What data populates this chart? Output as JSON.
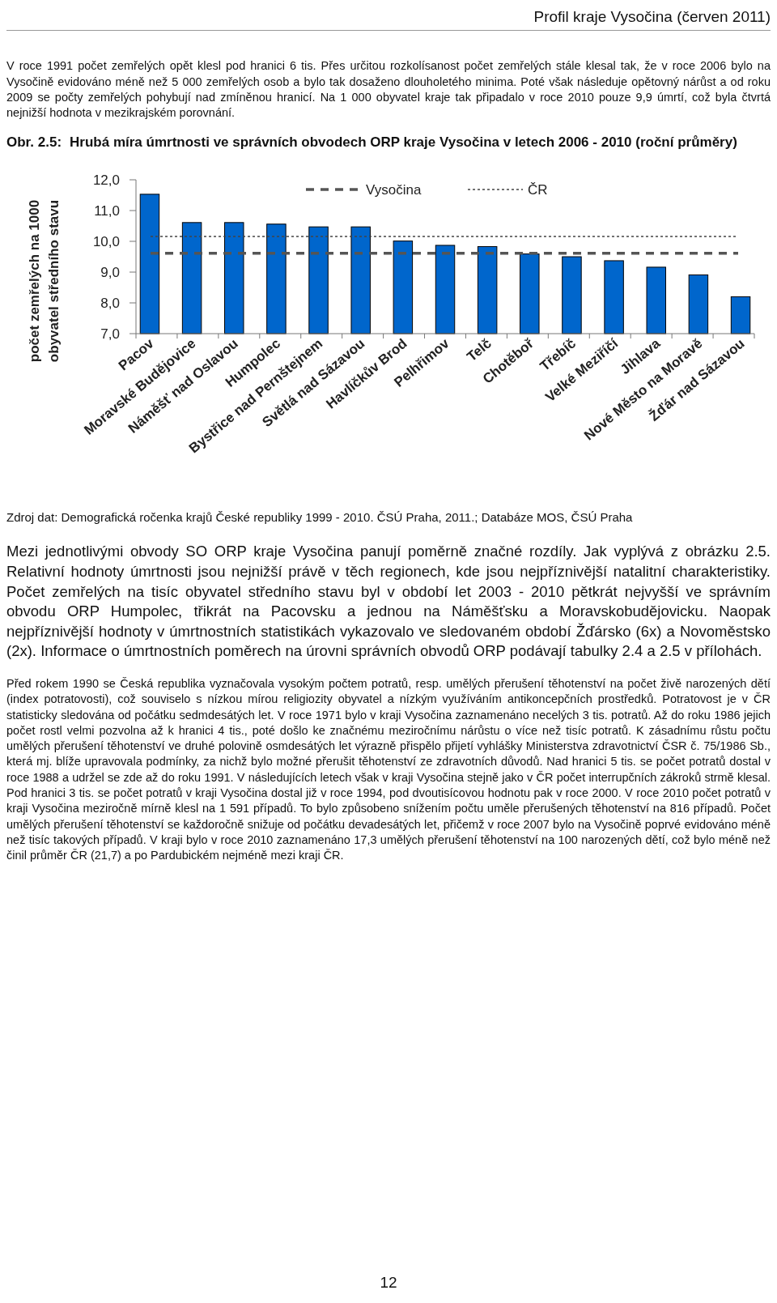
{
  "chart_data": {
    "type": "bar",
    "title": "Obr. 2.5: Hrubá míra úmrtnosti ve správních obvodech ORP kraje Vysočina v letech 2006 - 2010 (roční průměry)",
    "ylabel": "počet zemřelých na 1000 obyvatel středního stavu",
    "categories": [
      "Pacov",
      "Moravské Budějovice",
      "Náměšť nad Oslavou",
      "Humpolec",
      "Bystřice nad Pernštejnem",
      "Světlá nad Sázavou",
      "Havlíčkův Brod",
      "Pelhřimov",
      "Telč",
      "Chotěboř",
      "Třebíč",
      "Velké Meziříčí",
      "Jihlava",
      "Nové Město na Moravě",
      "Žďár nad Sázavou"
    ],
    "values": [
      11.53,
      10.61,
      10.61,
      10.56,
      10.47,
      10.47,
      10.01,
      9.87,
      9.83,
      9.59,
      9.5,
      9.37,
      9.16,
      8.91,
      8.2
    ],
    "color": "#0066cc",
    "ylim": [
      7,
      12
    ],
    "yticks": [
      {
        "value": 7,
        "label": "7,0"
      },
      {
        "value": 8,
        "label": "8,0"
      },
      {
        "value": 9,
        "label": "9,0"
      },
      {
        "value": 10,
        "label": "10,0"
      },
      {
        "value": 11,
        "label": "11,0"
      },
      {
        "value": 12,
        "label": "12,0"
      }
    ],
    "ref_lines": [
      {
        "axis": "y",
        "value": 9.61,
        "label": "Vysočina",
        "color": "#555555",
        "line_style": "dashed"
      },
      {
        "axis": "y",
        "value": 10.16,
        "label": "ČR",
        "color": "#444444",
        "line_style": "dotted"
      }
    ],
    "legend": "top",
    "annotations": [
      "Profil kraje Vysočina (červen 2011)",
      "V roce 1991 počet zemřelých opět klesl pod hranici 6 tis. Přes určitou rozkolísanost počet zemřelých stále klesal tak, že v roce 2006 bylo na Vysočině evidováno méně než 5 000 zemřelých osob a bylo tak dosaženo dlouholetého minima. Poté však následuje opětovný nárůst a od roku 2009 se počty zemřelých pohybují nad zmíněnou hranicí. Na 1 000 obyvatel kraje tak připadalo v roce 2010 pouze 9,9 úmrtí, což byla čtvrtá nejnižší hodnota v mezikrajském porovnání.",
      "Zdroj dat: Demografická ročenka krajů České republiky 1999 - 2010. ČSÚ Praha, 2011.; Databáze MOS, ČSÚ Praha",
      "Mezi jednotlivými obvody SO ORP kraje Vysočina panují poměrně značné rozdíly. Jak vyplývá z obrázku 2.5. Relativní hodnoty úmrtnosti jsou nejnižší právě v těch regionech, kde jsou nejpříznivější natalitní charakteristiky. Počet zemřelých na tisíc obyvatel středního stavu byl v období let 2003 - 2010 pětkrát nejvyšší ve správním obvodu ORP Humpolec, třikrát na Pacovsku a jednou na Náměšťsku a Moravskobudějovicku. Naopak nejpříznivější hodnoty v úmrtnostních statistikách vykazovalo ve sledovaném období Žďársko (6x) a Novoměstsko (2x). Informace o úmrtnostních poměrech na úrovni správních obvodů ORP podávají tabulky 2.4 a 2.5 v přílohách.",
      "Před rokem 1990 se Česká republika vyznačovala vysokým počtem potratů, resp. umělých přerušení těhotenství na počet živě narozených dětí (index potratovosti), což souviselo s nízkou mírou religiozity obyvatel a nízkým využíváním antikoncepčních prostředků. Potratovost je v ČR statisticky sledována od počátku sedmdesátých let. V roce 1971 bylo v kraji Vysočina zaznamenáno necelých 3 tis. potratů. Až do roku 1986 jejich počet rostl velmi pozvolna až k hranici 4 tis., poté došlo ke značnému meziročnímu nárůstu o více než tisíc potratů. K zásadnímu růstu počtu umělých přerušení těhotenství ve druhé polovině osmdesátých let výrazně přispělo přijetí vyhlášky Ministerstva zdravotnictví ČSR č. 75/1986 Sb., která mj. blíže upravovala podmínky, za nichž bylo možné přerušit těhotenství ze zdravotních důvodů. Nad hranici 5 tis. se počet potratů dostal v roce 1988 a udržel se zde až do roku 1991. V následujících letech však v kraji Vysočina stejně jako v ČR počet interrupčních zákroků strmě klesal. Pod hranici 3 tis. se počet potratů v kraji Vysočina dostal již v roce 1994, pod dvoutisícovou hodnotu pak v roce 2000. V roce 2010 počet potratů v kraji Vysočina meziročně mírně klesl na 1 591 případů. To bylo způsobeno snížením počtu uměle přerušených těhotenství na 816 případů. Počet umělých přerušení těhotenství se každoročně snižuje od počátku devadesátých let, přičemž v roce 2007 bylo na Vysočině poprvé evidováno méně než tisíc takových případů. V kraji bylo v roce 2010 zaznamenáno 17,3 umělých přerušení těhotenství na 100 narozených dětí, což bylo méně než činil průměr ČR (21,7) a po Pardubickém nejméně mezi kraji ČR.",
      "12"
    ]
  }
}
